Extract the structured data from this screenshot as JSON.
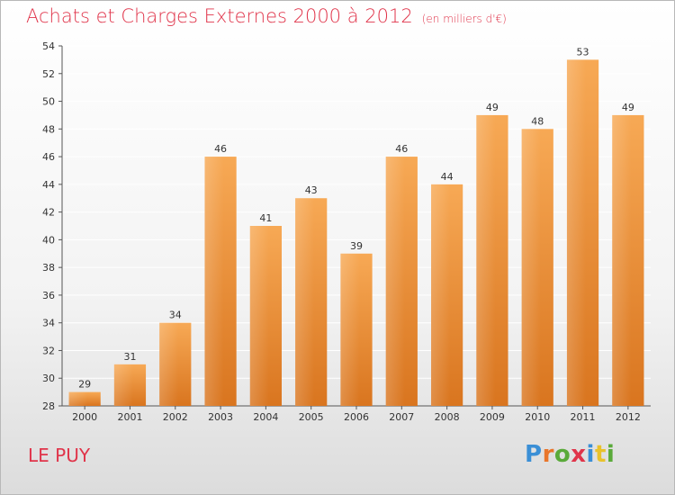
{
  "header": {
    "title": "Achats et Charges Externes 2000 à 2012",
    "unit": "(en milliers d'€)"
  },
  "footer": {
    "place": "LE PUY",
    "logo": "Proxiti",
    "logo_colors": [
      "#3a8fd6",
      "#e9762b",
      "#5aaa3a",
      "#e0344a",
      "#3a8fd6",
      "#e9c22b",
      "#5aaa3a"
    ]
  },
  "colors": {
    "title": "#e0344a",
    "bar_top": "#f7a955",
    "bar_bottom": "#d9751f",
    "grid": "#ffffff",
    "axis_text": "#333333"
  },
  "chart_data": {
    "type": "bar",
    "title": "Achats et Charges Externes 2000 à 2012",
    "subtitle": "(en milliers d'€)",
    "categories": [
      "2000",
      "2001",
      "2002",
      "2003",
      "2004",
      "2005",
      "2006",
      "2007",
      "2008",
      "2009",
      "2010",
      "2011",
      "2012"
    ],
    "values": [
      29,
      31,
      34,
      46,
      41,
      43,
      39,
      46,
      44,
      49,
      48,
      53,
      49
    ],
    "ylim": [
      28,
      54
    ],
    "yticks": [
      28,
      30,
      32,
      34,
      36,
      38,
      40,
      42,
      44,
      46,
      48,
      50,
      52,
      54
    ],
    "grid": true,
    "data_labels": true
  }
}
